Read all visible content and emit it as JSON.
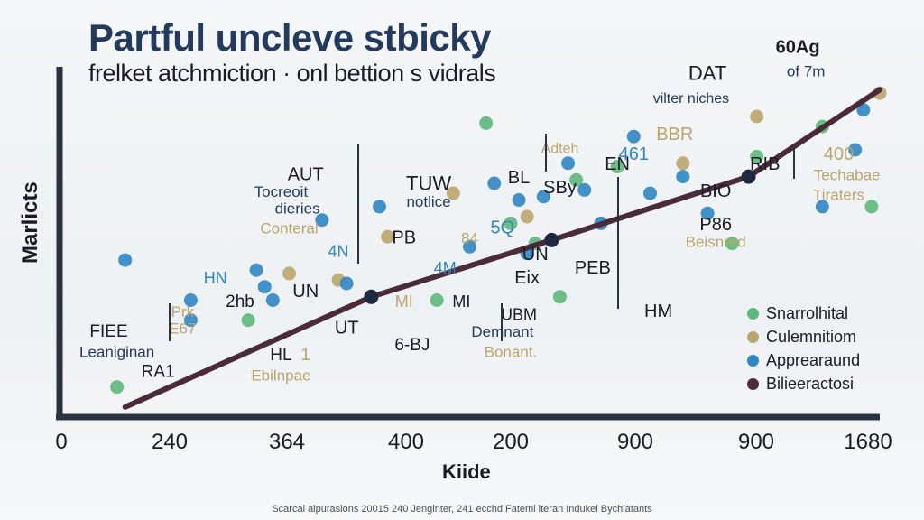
{
  "chart_data": {
    "type": "scatter",
    "title": "Partful uncleve stbicky",
    "subtitle": "frelket atchmiction · onl bettion s vidrals",
    "xlabel": "Kiide",
    "ylabel": "Marlicts",
    "x_tick_labels": [
      "0",
      "240",
      "364",
      "400",
      "200",
      "900",
      "900",
      "1680"
    ],
    "footer": "Scarcal alpurasions 20015 240 Jenginter, 241 ecchd Fatemi lteran Indukel Bychiatants",
    "colors": {
      "green": "#5cb97a",
      "olive": "#b9a66b",
      "blue": "#2f86c4",
      "line": "#4a2b3a",
      "axis": "#2b3340",
      "title": "#233a5e"
    },
    "legend": [
      {
        "label": "Snarrolhital",
        "color": "#5cb97a"
      },
      {
        "label": "Culemnitiom",
        "color": "#b9a66b"
      },
      {
        "label": "Apprearaund",
        "color": "#2f86c4"
      },
      {
        "label": "Bilieeractosi",
        "color": "#4a2b3a"
      }
    ],
    "trend_line": {
      "name": "Bilieeractosi",
      "points": [
        [
          0.08,
          0.03
        ],
        [
          0.38,
          0.36
        ],
        [
          0.6,
          0.53
        ],
        [
          0.84,
          0.72
        ],
        [
          1.0,
          0.98
        ]
      ],
      "markers": [
        [
          0.38,
          0.36
        ],
        [
          0.6,
          0.53
        ],
        [
          0.84,
          0.72
        ],
        [
          1.0,
          0.98
        ]
      ]
    },
    "series": [
      {
        "name": "Snarrolhital",
        "points": [
          [
            0.07,
            0.09
          ],
          [
            0.46,
            0.35
          ],
          [
            0.52,
            0.88
          ],
          [
            0.55,
            0.58
          ],
          [
            0.58,
            0.52
          ],
          [
            0.63,
            0.71
          ],
          [
            0.68,
            0.75
          ],
          [
            0.82,
            0.52
          ],
          [
            0.99,
            0.63
          ],
          [
            0.93,
            0.87
          ],
          [
            0.85,
            0.78
          ],
          [
            0.61,
            0.36
          ],
          [
            0.23,
            0.29
          ]
        ]
      },
      {
        "name": "Culemnitiom",
        "points": [
          [
            0.48,
            0.67
          ],
          [
            0.4,
            0.54
          ],
          [
            0.34,
            0.41
          ],
          [
            0.28,
            0.43
          ],
          [
            0.57,
            0.6
          ],
          [
            0.76,
            0.76
          ],
          [
            0.85,
            0.9
          ],
          [
            1.0,
            0.97
          ]
        ]
      },
      {
        "name": "Apprearaund",
        "points": [
          [
            0.08,
            0.47
          ],
          [
            0.16,
            0.29
          ],
          [
            0.16,
            0.35
          ],
          [
            0.24,
            0.44
          ],
          [
            0.26,
            0.35
          ],
          [
            0.32,
            0.59
          ],
          [
            0.39,
            0.63
          ],
          [
            0.5,
            0.51
          ],
          [
            0.53,
            0.7
          ],
          [
            0.56,
            0.65
          ],
          [
            0.59,
            0.66
          ],
          [
            0.62,
            0.76
          ],
          [
            0.64,
            0.68
          ],
          [
            0.7,
            0.84
          ],
          [
            0.72,
            0.67
          ],
          [
            0.76,
            0.72
          ],
          [
            0.79,
            0.61
          ],
          [
            0.66,
            0.58
          ],
          [
            0.97,
            0.8
          ],
          [
            0.93,
            0.63
          ],
          [
            0.57,
            0.49
          ],
          [
            0.35,
            0.4
          ],
          [
            0.25,
            0.39
          ],
          [
            0.98,
            0.92
          ]
        ]
      }
    ],
    "labels": [
      {
        "text": "PARtful",
        "x": 0.5,
        "y": 0.0,
        "show": false
      },
      {
        "text": "DAT",
        "x": 0.79,
        "y": 1.01,
        "color": "#1b1b22",
        "size": 22
      },
      {
        "text": "vilter niches",
        "x": 0.77,
        "y": 0.94,
        "color": "#233a5e",
        "size": 16
      },
      {
        "text": "60Ag",
        "x": 0.9,
        "y": 1.09,
        "color": "#1b1b22",
        "size": 20,
        "bold": true
      },
      {
        "text": "of 7m",
        "x": 0.91,
        "y": 1.02,
        "color": "#233a5e",
        "size": 17
      },
      {
        "text": "BBR",
        "x": 0.75,
        "y": 0.83,
        "color": "#b9a66b",
        "size": 20
      },
      {
        "text": "461",
        "x": 0.7,
        "y": 0.77,
        "color": "#2f86c4",
        "size": 20
      },
      {
        "text": "Adteh",
        "x": 0.61,
        "y": 0.79,
        "color": "#b9a66b",
        "size": 16
      },
      {
        "text": "AUT",
        "x": 0.3,
        "y": 0.71,
        "color": "#1b1b22",
        "size": 20
      },
      {
        "text": "Tocreoit",
        "x": 0.27,
        "y": 0.66,
        "color": "#233a5e",
        "size": 17
      },
      {
        "text": "dieries",
        "x": 0.29,
        "y": 0.61,
        "color": "#233a5e",
        "size": 17
      },
      {
        "text": "Conteral",
        "x": 0.28,
        "y": 0.55,
        "color": "#b9a66b",
        "size": 17
      },
      {
        "text": "TUW",
        "x": 0.45,
        "y": 0.68,
        "color": "#1b1b22",
        "size": 22
      },
      {
        "text": "notlice",
        "x": 0.45,
        "y": 0.63,
        "color": "#233a5e",
        "size": 17
      },
      {
        "text": "BL",
        "x": 0.56,
        "y": 0.7,
        "color": "#1b1b22",
        "size": 20
      },
      {
        "text": "SBy",
        "x": 0.61,
        "y": 0.67,
        "color": "#1b1b22",
        "size": 20
      },
      {
        "text": "EN",
        "x": 0.68,
        "y": 0.74,
        "color": "#1b1b22",
        "size": 20
      },
      {
        "text": "RIB",
        "x": 0.86,
        "y": 0.74,
        "color": "#1b1b22",
        "size": 20
      },
      {
        "text": "BIO",
        "x": 0.8,
        "y": 0.66,
        "color": "#1b1b22",
        "size": 20
      },
      {
        "text": "400",
        "x": 0.95,
        "y": 0.77,
        "color": "#b9a66b",
        "size": 20
      },
      {
        "text": "Techabae",
        "x": 0.96,
        "y": 0.71,
        "color": "#b9a66b",
        "size": 17
      },
      {
        "text": "Tiraters",
        "x": 0.95,
        "y": 0.65,
        "color": "#b9a66b",
        "size": 17
      },
      {
        "text": "P86",
        "x": 0.8,
        "y": 0.56,
        "color": "#1b1b22",
        "size": 20
      },
      {
        "text": "Beisnred",
        "x": 0.8,
        "y": 0.51,
        "color": "#b9a66b",
        "size": 17
      },
      {
        "text": "PB",
        "x": 0.42,
        "y": 0.52,
        "color": "#1b1b22",
        "size": 20
      },
      {
        "text": "84",
        "x": 0.5,
        "y": 0.52,
        "color": "#b9a66b",
        "size": 17
      },
      {
        "text": "5Q",
        "x": 0.54,
        "y": 0.55,
        "color": "#2f86c4",
        "size": 20
      },
      {
        "text": "4N",
        "x": 0.34,
        "y": 0.48,
        "color": "#2f86c4",
        "size": 18
      },
      {
        "text": "UN",
        "x": 0.58,
        "y": 0.47,
        "color": "#1b1b22",
        "size": 20
      },
      {
        "text": "PEB",
        "x": 0.65,
        "y": 0.43,
        "color": "#1b1b22",
        "size": 20
      },
      {
        "text": "4M",
        "x": 0.47,
        "y": 0.43,
        "color": "#2f86c4",
        "size": 18
      },
      {
        "text": "Eix",
        "x": 0.57,
        "y": 0.4,
        "color": "#1b1b22",
        "size": 20
      },
      {
        "text": "HN",
        "x": 0.19,
        "y": 0.4,
        "color": "#2f86c4",
        "size": 18
      },
      {
        "text": "UN",
        "x": 0.3,
        "y": 0.36,
        "color": "#1b1b22",
        "size": 20
      },
      {
        "text": "2hb",
        "x": 0.22,
        "y": 0.33,
        "color": "#1b1b22",
        "size": 19
      },
      {
        "text": "MI",
        "x": 0.42,
        "y": 0.33,
        "color": "#b9a66b",
        "size": 18
      },
      {
        "text": "MI",
        "x": 0.49,
        "y": 0.33,
        "color": "#1b1b22",
        "size": 18
      },
      {
        "text": "HM",
        "x": 0.73,
        "y": 0.3,
        "color": "#1b1b22",
        "size": 20
      },
      {
        "text": "Prk",
        "x": 0.15,
        "y": 0.3,
        "color": "#b9a66b",
        "size": 17
      },
      {
        "text": "E67",
        "x": 0.15,
        "y": 0.25,
        "color": "#b9a66b",
        "size": 17
      },
      {
        "text": "UBM",
        "x": 0.56,
        "y": 0.29,
        "color": "#1b1b22",
        "size": 18
      },
      {
        "text": "Demnant",
        "x": 0.54,
        "y": 0.24,
        "color": "#233a5e",
        "size": 17
      },
      {
        "text": "Bonant.",
        "x": 0.55,
        "y": 0.18,
        "color": "#b9a66b",
        "size": 17
      },
      {
        "text": "UT",
        "x": 0.35,
        "y": 0.25,
        "color": "#1b1b22",
        "size": 20
      },
      {
        "text": "FIEE",
        "x": 0.06,
        "y": 0.24,
        "color": "#1b1b22",
        "size": 19
      },
      {
        "text": "Leaniginan",
        "x": 0.07,
        "y": 0.18,
        "color": "#233a5e",
        "size": 17
      },
      {
        "text": "HL",
        "x": 0.27,
        "y": 0.17,
        "color": "#1b1b22",
        "size": 19
      },
      {
        "text": "1",
        "x": 0.3,
        "y": 0.17,
        "color": "#b9a66b",
        "size": 19
      },
      {
        "text": "Ebilnpae",
        "x": 0.27,
        "y": 0.11,
        "color": "#b9a66b",
        "size": 17
      },
      {
        "text": "6-BJ",
        "x": 0.43,
        "y": 0.2,
        "color": "#1b1b22",
        "size": 19
      },
      {
        "text": "RA1",
        "x": 0.12,
        "y": 0.12,
        "color": "#1b1b22",
        "size": 19
      }
    ],
    "legend_position": "bottom-right",
    "grid": false,
    "xlim": [
      0,
      1
    ],
    "ylim": [
      0,
      1
    ]
  }
}
